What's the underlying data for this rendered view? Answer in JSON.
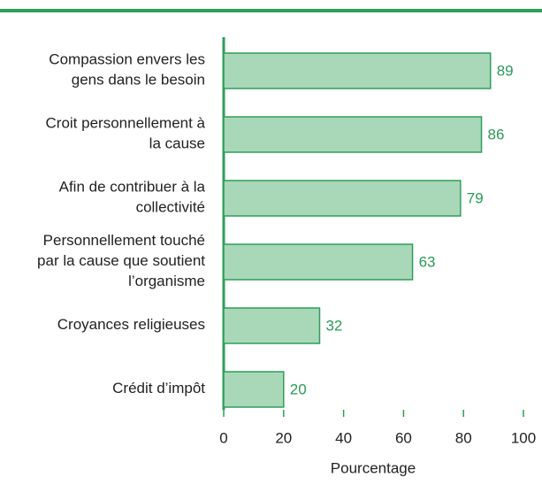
{
  "chart_data": {
    "type": "bar",
    "orientation": "horizontal",
    "categories": [
      "Compassion envers les\ngens dans le besoin",
      "Croit personnellement à\nla cause",
      "Afin de contribuer à la\ncollectivité",
      "Personnellement touché\npar la cause que soutient\nl’organisme",
      "Croyances religieuses",
      "Crédit d’impôt"
    ],
    "values": [
      89,
      86,
      79,
      63,
      32,
      20
    ],
    "color": "#a8d8b8",
    "edge_color": "#2e9e5b",
    "xlabel": "Pourcentage",
    "xlim": [
      0,
      100
    ],
    "xticks": [
      0,
      20,
      40,
      60,
      80,
      100
    ]
  }
}
